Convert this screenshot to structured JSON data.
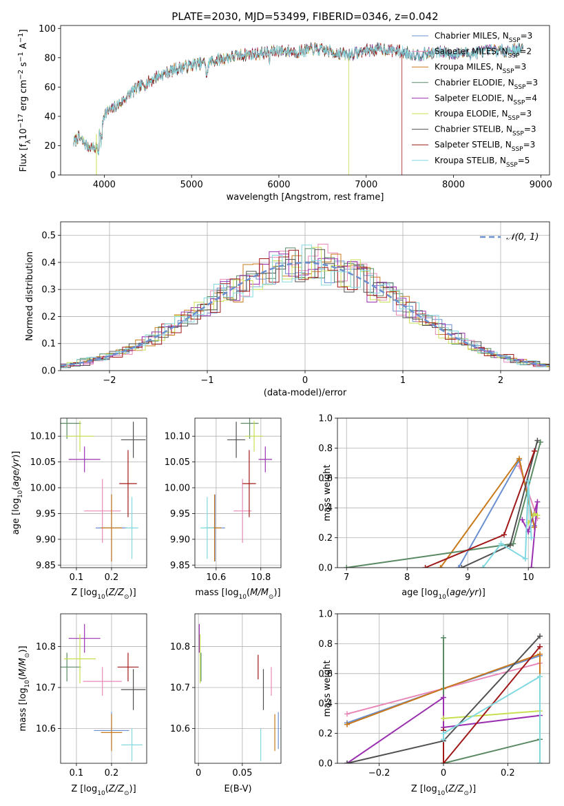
{
  "figure": {
    "title": "PLATE=2030, MJD=53499, FIBERID=0346, z=0.042"
  },
  "colors": {
    "Chabrier MILES": "#6a8fd0",
    "Salpeter MILES": "#e888b8",
    "Kroupa MILES": "#c87818",
    "Chabrier ELODIE": "#5a8a64",
    "Salpeter ELODIE": "#9a30b0",
    "Kroupa ELODIE": "#c8e050",
    "Chabrier STELIB": "#505050",
    "Salpeter STELIB": "#a01818",
    "Kroupa STELIB": "#80d8e0",
    "gauss": "#6a8fd0",
    "grid": "#b0b0b0"
  },
  "legend": [
    {
      "key": "Chabrier MILES",
      "label": "Chabrier MILES, N",
      "n": "=3"
    },
    {
      "key": "Salpeter MILES",
      "label": "Salpeter MILES, N",
      "n": "=2"
    },
    {
      "key": "Kroupa MILES",
      "label": "Kroupa MILES, N",
      "n": "=3"
    },
    {
      "key": "Chabrier ELODIE",
      "label": "Chabrier ELODIE, N",
      "n": "=3"
    },
    {
      "key": "Salpeter ELODIE",
      "label": "Salpeter ELODIE, N",
      "n": "=4"
    },
    {
      "key": "Kroupa ELODIE",
      "label": "Kroupa ELODIE, N",
      "n": "=3"
    },
    {
      "key": "Chabrier STELIB",
      "label": "Chabrier STELIB, N",
      "n": "=3"
    },
    {
      "key": "Salpeter STELIB",
      "label": "Salpeter STELIB, N",
      "n": "=3"
    },
    {
      "key": "Kroupa STELIB",
      "label": "Kroupa STELIB, N",
      "n": "=5"
    }
  ],
  "legend_sub": "SSP",
  "gauss_label": "𝒩(0, 1)",
  "chart_data": [
    {
      "type": "line",
      "title": "PLATE=2030, MJD=53499, FIBERID=0346, z=0.042",
      "xlabel": "wavelength [Angstrom, rest frame]",
      "ylabel": "Flux [f_λ10^-17 erg cm^-2 s^-1 A^-1]",
      "xlim": [
        3500,
        9100
      ],
      "ylim": [
        0,
        102
      ],
      "xticks": [
        4000,
        5000,
        6000,
        7000,
        8000,
        9000
      ],
      "yticks": [
        0,
        20,
        40,
        60,
        80,
        100
      ],
      "spectrum_anchors": {
        "x": [
          3650,
          3700,
          3800,
          3900,
          3950,
          4000,
          4100,
          4200,
          4300,
          4400,
          4500,
          4600,
          4800,
          5000,
          5200,
          5400,
          5600,
          5800,
          6000,
          6200,
          6400,
          6600,
          6800,
          7000,
          7200,
          7400,
          7600,
          7800,
          8000,
          8200,
          8400,
          8600,
          8800
        ],
        "y": [
          22,
          26,
          20,
          18,
          28,
          42,
          45,
          50,
          56,
          60,
          63,
          67,
          72,
          75,
          77,
          80,
          82,
          83,
          85,
          84,
          86,
          84,
          82,
          85,
          86,
          84,
          82,
          84,
          83,
          83,
          85,
          85,
          86
        ]
      },
      "drops": [
        {
          "series": "Salpeter STELIB",
          "x": 7410
        },
        {
          "series": "Kroupa ELODIE",
          "x": 6800
        },
        {
          "series": "Salpeter ELODIE",
          "x": 3910
        }
      ],
      "grid": false
    },
    {
      "type": "step",
      "xlabel": "(data-model)/error",
      "ylabel": "Normed distribution",
      "xlim": [
        -2.5,
        2.5
      ],
      "ylim": [
        0,
        0.55
      ],
      "xticks": [
        -2,
        -1,
        0,
        1,
        2
      ],
      "yticks": [
        0.0,
        0.1,
        0.2,
        0.3,
        0.4,
        0.5
      ],
      "grid": true,
      "legend": "top-right",
      "gaussian": {
        "mu": 0,
        "sigma": 1
      }
    },
    {
      "type": "errorbar",
      "xlabel": "Z [log10(Z/Z⊙)]",
      "ylabel": "age  [log10(age/yr)]",
      "xlim": [
        0.055,
        0.3
      ],
      "ylim": [
        9.845,
        10.135
      ],
      "xticks": [
        0.1,
        0.2
      ],
      "yticks": [
        9.85,
        9.9,
        9.95,
        10.0,
        10.05,
        10.1
      ],
      "points": [
        {
          "s": "Chabrier MILES",
          "x": 0.2,
          "y": 9.922,
          "ex": 0.045,
          "ey": 0.065
        },
        {
          "s": "Salpeter MILES",
          "x": 0.174,
          "y": 9.955,
          "ex": 0.052,
          "ey": 0.062
        },
        {
          "s": "Kroupa MILES",
          "x": 0.2,
          "y": 9.922,
          "ex": 0.03,
          "ey": 0.065
        },
        {
          "s": "Chabrier ELODIE",
          "x": 0.073,
          "y": 10.125,
          "ex": 0.04,
          "ey": 0.03
        },
        {
          "s": "Salpeter ELODIE",
          "x": 0.123,
          "y": 10.055,
          "ex": 0.045,
          "ey": 0.025
        },
        {
          "s": "Kroupa ELODIE",
          "x": 0.11,
          "y": 10.1,
          "ex": 0.04,
          "ey": 0.03
        },
        {
          "s": "Chabrier STELIB",
          "x": 0.262,
          "y": 10.093,
          "ex": 0.035,
          "ey": 0.035
        },
        {
          "s": "Salpeter STELIB",
          "x": 0.247,
          "y": 10.008,
          "ex": 0.025,
          "ey": 0.065
        },
        {
          "s": "Kroupa STELIB",
          "x": 0.258,
          "y": 9.922,
          "ex": 0.018,
          "ey": 0.06
        }
      ]
    },
    {
      "type": "errorbar",
      "xlabel": "mass [log10(M/M⊙)]",
      "xlim": [
        10.505,
        10.89
      ],
      "ylim": [
        9.845,
        10.135
      ],
      "xticks": [
        10.6,
        10.8
      ],
      "yticks": [
        9.85,
        9.9,
        9.95,
        10.0,
        10.05,
        10.1
      ],
      "points": [
        {
          "s": "Chabrier MILES",
          "x": 10.595,
          "y": 9.922,
          "ex": 0.045,
          "ey": 0.065
        },
        {
          "s": "Salpeter MILES",
          "x": 10.718,
          "y": 9.955,
          "ex": 0.04,
          "ey": 0.062
        },
        {
          "s": "Kroupa MILES",
          "x": 10.593,
          "y": 9.922,
          "ex": 0.03,
          "ey": 0.065
        },
        {
          "s": "Chabrier ELODIE",
          "x": 10.75,
          "y": 10.125,
          "ex": 0.04,
          "ey": 0.03
        },
        {
          "s": "Salpeter ELODIE",
          "x": 10.82,
          "y": 10.055,
          "ex": 0.03,
          "ey": 0.025
        },
        {
          "s": "Kroupa ELODIE",
          "x": 10.77,
          "y": 10.1,
          "ex": 0.04,
          "ey": 0.03
        },
        {
          "s": "Chabrier STELIB",
          "x": 10.69,
          "y": 10.093,
          "ex": 0.04,
          "ey": 0.035
        },
        {
          "s": "Salpeter STELIB",
          "x": 10.748,
          "y": 10.008,
          "ex": 0.03,
          "ey": 0.065
        },
        {
          "s": "Kroupa STELIB",
          "x": 10.56,
          "y": 9.922,
          "ex": 0.03,
          "ey": 0.06
        }
      ]
    },
    {
      "type": "line",
      "xlabel": "age  [log10(age/yr)]",
      "ylabel": "mass weight",
      "xlim": [
        6.85,
        10.35
      ],
      "ylim": [
        0,
        1.0
      ],
      "xticks": [
        7,
        8,
        9,
        10
      ],
      "yticks": [
        0.0,
        0.2,
        0.4,
        0.6,
        0.8,
        1.0
      ],
      "grid": true,
      "series": [
        {
          "s": "Chabrier MILES",
          "x": [
            8.85,
            9.85,
            10.1
          ],
          "y": [
            0.0,
            0.72,
            0.28
          ]
        },
        {
          "s": "Salpeter MILES",
          "x": [
            9.85,
            10.15
          ],
          "y": [
            0.68,
            0.33
          ]
        },
        {
          "s": "Kroupa MILES",
          "x": [
            8.55,
            9.85,
            10.1
          ],
          "y": [
            0.0,
            0.73,
            0.27
          ]
        },
        {
          "s": "Chabrier ELODIE",
          "x": [
            7.0,
            9.75,
            10.2
          ],
          "y": [
            0.0,
            0.16,
            0.84
          ]
        },
        {
          "s": "Salpeter ELODIE",
          "x": [
            9.9,
            10.0,
            10.15,
            10.05
          ],
          "y": [
            0.32,
            0.24,
            0.44,
            0.0
          ]
        },
        {
          "s": "Kroupa ELODIE",
          "x": [
            10.0,
            10.1,
            10.15
          ],
          "y": [
            0.3,
            0.36,
            0.35
          ]
        },
        {
          "s": "Chabrier STELIB",
          "x": [
            8.9,
            9.7,
            10.15
          ],
          "y": [
            0.0,
            0.15,
            0.85
          ]
        },
        {
          "s": "Salpeter STELIB",
          "x": [
            8.3,
            9.6,
            10.1
          ],
          "y": [
            0.0,
            0.22,
            0.78
          ]
        },
        {
          "s": "Kroupa STELIB",
          "x": [
            9.25,
            9.55,
            9.95,
            10.0,
            10.05
          ],
          "y": [
            0.0,
            0.16,
            0.06,
            0.58,
            0.2
          ]
        }
      ]
    },
    {
      "type": "errorbar",
      "xlabel": "Z [log10(Z/Z⊙)]",
      "ylabel": "mass [log10(M/M⊙)]",
      "xlim": [
        0.055,
        0.3
      ],
      "ylim": [
        10.515,
        10.88
      ],
      "xticks": [
        0.1,
        0.2
      ],
      "yticks": [
        10.6,
        10.7,
        10.8
      ],
      "points": [
        {
          "s": "Chabrier MILES",
          "x": 0.2,
          "y": 10.595,
          "ex": 0.05,
          "ey": 0.045
        },
        {
          "s": "Salpeter MILES",
          "x": 0.174,
          "y": 10.715,
          "ex": 0.055,
          "ey": 0.035
        },
        {
          "s": "Kroupa MILES",
          "x": 0.2,
          "y": 10.59,
          "ex": 0.03,
          "ey": 0.045
        },
        {
          "s": "Chabrier ELODIE",
          "x": 0.073,
          "y": 10.75,
          "ex": 0.04,
          "ey": 0.035
        },
        {
          "s": "Salpeter ELODIE",
          "x": 0.123,
          "y": 10.82,
          "ex": 0.045,
          "ey": 0.035
        },
        {
          "s": "Kroupa ELODIE",
          "x": 0.11,
          "y": 10.77,
          "ex": 0.045,
          "ey": 0.06
        },
        {
          "s": "Chabrier STELIB",
          "x": 0.262,
          "y": 10.695,
          "ex": 0.035,
          "ey": 0.05
        },
        {
          "s": "Salpeter STELIB",
          "x": 0.247,
          "y": 10.75,
          "ex": 0.03,
          "ey": 0.035
        },
        {
          "s": "Kroupa STELIB",
          "x": 0.258,
          "y": 10.56,
          "ex": 0.03,
          "ey": 0.04
        }
      ]
    },
    {
      "type": "errorbar",
      "xlabel": "E(B-V)",
      "xlim": [
        -0.004,
        0.094
      ],
      "ylim": [
        10.515,
        10.88
      ],
      "xticks": [
        0.0,
        0.05
      ],
      "yticks": [
        10.6,
        10.7,
        10.8
      ],
      "points": [
        {
          "s": "Chabrier MILES",
          "x": 0.091,
          "y": 10.595,
          "ex": 0,
          "ey": 0.045
        },
        {
          "s": "Salpeter MILES",
          "x": 0.083,
          "y": 10.715,
          "ex": 0,
          "ey": 0.035
        },
        {
          "s": "Kroupa MILES",
          "x": 0.087,
          "y": 10.59,
          "ex": 0,
          "ey": 0.045
        },
        {
          "s": "Chabrier ELODIE",
          "x": 0.003,
          "y": 10.75,
          "ex": 0,
          "ey": 0.035
        },
        {
          "s": "Salpeter ELODIE",
          "x": 0.001,
          "y": 10.82,
          "ex": 0,
          "ey": 0.035
        },
        {
          "s": "Kroupa ELODIE",
          "x": 0.002,
          "y": 10.77,
          "ex": 0,
          "ey": 0.06
        },
        {
          "s": "Chabrier STELIB",
          "x": 0.074,
          "y": 10.695,
          "ex": 0,
          "ey": 0.05
        },
        {
          "s": "Salpeter STELIB",
          "x": 0.068,
          "y": 10.75,
          "ex": 0,
          "ey": 0.03
        },
        {
          "s": "Kroupa STELIB",
          "x": 0.071,
          "y": 10.56,
          "ex": 0,
          "ey": 0.04
        }
      ]
    },
    {
      "type": "line",
      "xlabel": "Z [log10(Z/Z⊙)]",
      "ylabel": "mass weight",
      "xlim": [
        -0.33,
        0.33
      ],
      "ylim": [
        0,
        1.0
      ],
      "xticks": [
        -0.2,
        0.0,
        0.2
      ],
      "yticks": [
        0.0,
        0.2,
        0.4,
        0.6,
        0.8,
        1.0
      ],
      "grid": true,
      "series": [
        {
          "s": "Chabrier MILES",
          "x": [
            -0.3,
            0.0,
            0.3
          ],
          "y": [
            0.27,
            0.5,
            0.72
          ]
        },
        {
          "s": "Salpeter MILES",
          "x": [
            -0.3,
            0.0,
            0.3
          ],
          "y": [
            0.33,
            0.5,
            0.67
          ]
        },
        {
          "s": "Kroupa MILES",
          "x": [
            -0.3,
            0.0,
            0.3,
            0.3
          ],
          "y": [
            0.26,
            0.5,
            0.73,
            0.0
          ]
        },
        {
          "s": "Chabrier ELODIE",
          "x": [
            0.0,
            0.0,
            0.3
          ],
          "y": [
            0.84,
            0.0,
            0.16
          ]
        },
        {
          "s": "Salpeter ELODIE",
          "x": [
            -0.3,
            0.0,
            0.0,
            0.3
          ],
          "y": [
            0.0,
            0.44,
            0.24,
            0.32
          ]
        },
        {
          "s": "Kroupa ELODIE",
          "x": [
            0.0,
            0.3
          ],
          "y": [
            0.3,
            0.35
          ]
        },
        {
          "s": "Chabrier STELIB",
          "x": [
            -0.3,
            0.0,
            0.3
          ],
          "y": [
            0.0,
            0.15,
            0.85
          ]
        },
        {
          "s": "Salpeter STELIB",
          "x": [
            0.0,
            0.0,
            0.3
          ],
          "y": [
            0.22,
            0.0,
            0.78
          ]
        },
        {
          "s": "Kroupa STELIB",
          "x": [
            0.0,
            0.0,
            0.3,
            0.3
          ],
          "y": [
            0.16,
            0.2,
            0.58,
            0.0
          ]
        }
      ]
    }
  ]
}
